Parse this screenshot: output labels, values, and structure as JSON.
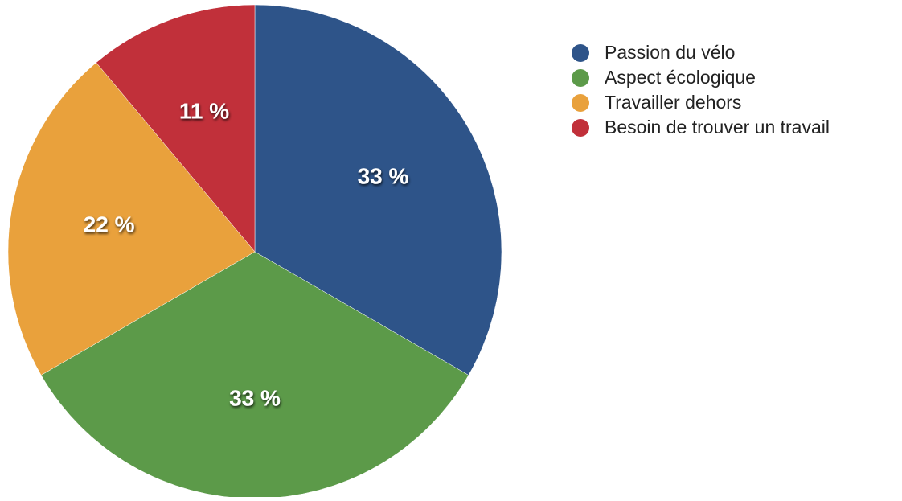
{
  "chart_data": {
    "type": "pie",
    "slices": [
      {
        "label": "Passion du vélo",
        "value": 33,
        "value_label": "33 %",
        "color": "#2e5489"
      },
      {
        "label": "Aspect écologique",
        "value": 33,
        "value_label": "33 %",
        "color": "#5c9a49"
      },
      {
        "label": "Travailler dehors",
        "value": 22,
        "value_label": "22 %",
        "color": "#e9a13c"
      },
      {
        "label": "Besoin de trouver un travail",
        "value": 11,
        "value_label": "11 %",
        "color": "#c1303a"
      }
    ],
    "legend_position": "top-right",
    "start": "top",
    "direction": "clockwise"
  }
}
